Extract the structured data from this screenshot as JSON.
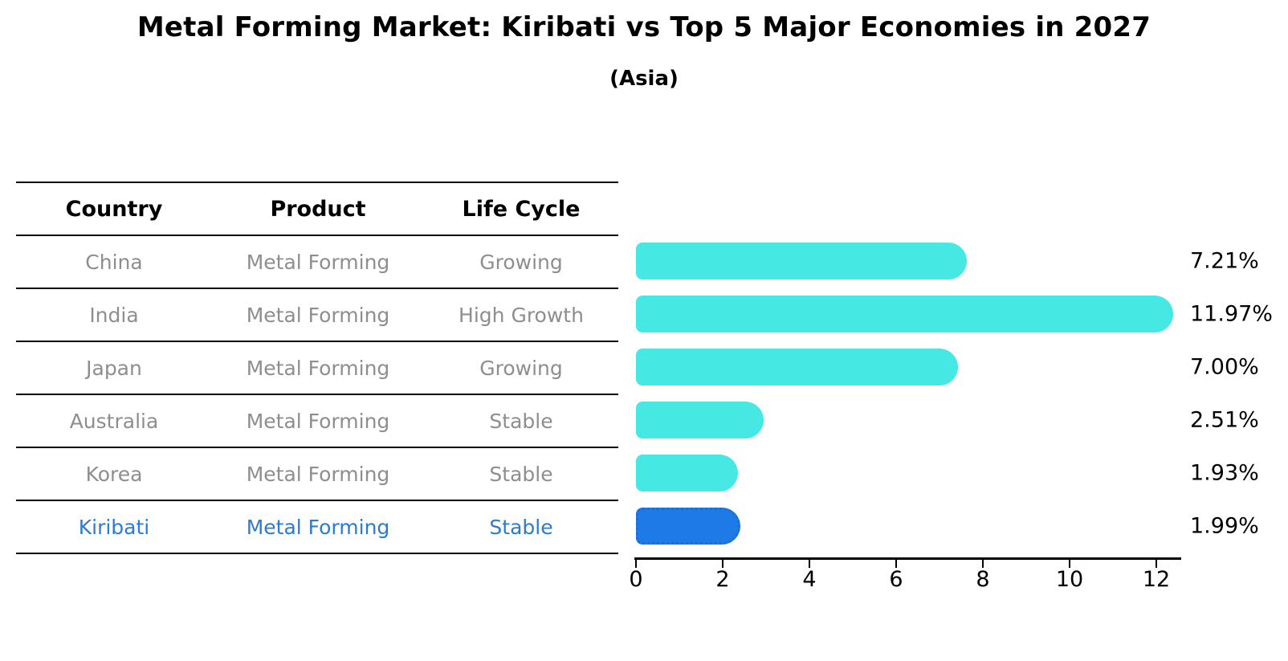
{
  "header": {
    "title": "Metal Forming Market: Kiribati vs Top 5 Major Economies in 2027",
    "subtitle": "(Asia)"
  },
  "table": {
    "columns": [
      "Country",
      "Product",
      "Life Cycle"
    ],
    "rows": [
      {
        "country": "China",
        "product": "Metal Forming",
        "life_cycle": "Growing",
        "highlight": false
      },
      {
        "country": "India",
        "product": "Metal Forming",
        "life_cycle": "High Growth",
        "highlight": false
      },
      {
        "country": "Japan",
        "product": "Metal Forming",
        "life_cycle": "Growing",
        "highlight": false
      },
      {
        "country": "Australia",
        "product": "Metal Forming",
        "life_cycle": "Stable",
        "highlight": false
      },
      {
        "country": "Korea",
        "product": "Metal Forming",
        "life_cycle": "Stable",
        "highlight": false
      },
      {
        "country": "Kiribati",
        "product": "Metal Forming",
        "life_cycle": "Stable",
        "highlight": true
      }
    ]
  },
  "chart_data": {
    "type": "bar",
    "orientation": "horizontal",
    "title": "Metal Forming Market: Kiribati vs Top 5 Major Economies in 2027",
    "subtitle": "(Asia)",
    "categories": [
      "China",
      "India",
      "Japan",
      "Australia",
      "Korea",
      "Kiribati"
    ],
    "values": [
      7.21,
      11.97,
      7.0,
      2.51,
      1.93,
      1.99
    ],
    "value_labels": [
      "7.21%",
      "11.97%",
      "7.00%",
      "2.51%",
      "1.93%",
      "1.99%"
    ],
    "xlabel": "",
    "ylabel": "",
    "xlim": [
      0,
      12.6
    ],
    "xticks": [
      0,
      2,
      4,
      6,
      8,
      10,
      12
    ],
    "grid": false,
    "legend": false,
    "highlight_index": 5
  },
  "colors": {
    "bar": "#45E8E2",
    "highlight_bar": "#1E7AE6",
    "highlight_bar_border": "#1B6ED4",
    "highlight_text": "#2B7AD4",
    "table_text": "#8E8E8E",
    "axis": "#000000"
  }
}
